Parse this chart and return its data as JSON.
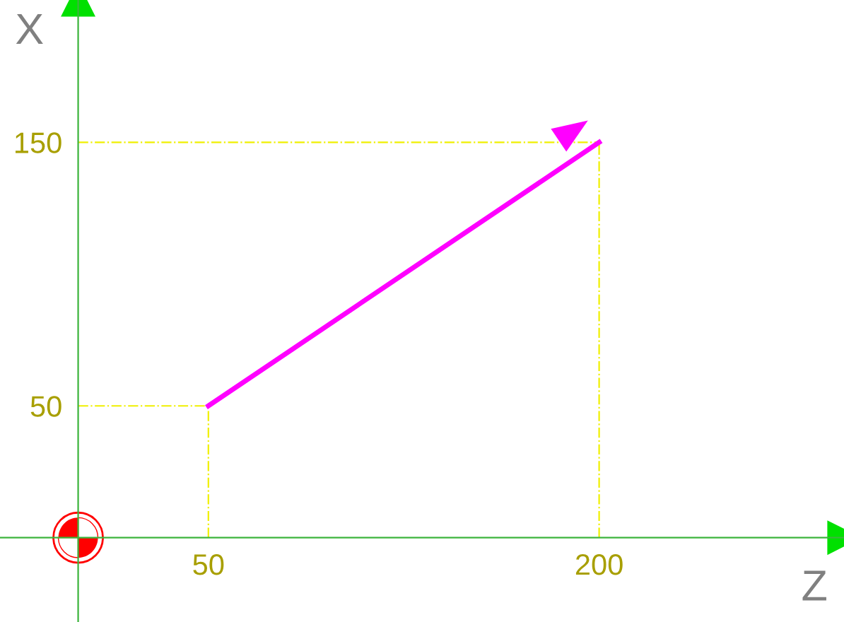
{
  "chart_data": {
    "type": "line",
    "xlabel": "Z",
    "ylabel": "X",
    "x": [
      50,
      200
    ],
    "series": [
      {
        "color": "#ff00ff",
        "values": [
          50,
          150
        ]
      }
    ],
    "xlim": [
      -30,
      294
    ],
    "ylim": [
      -32,
      204
    ],
    "xticks": [
      50,
      200
    ],
    "yticks": [
      50,
      150
    ],
    "ref_lines": [
      {
        "axis": "x",
        "value": 50,
        "color": "#f0f000",
        "line_style": "dashed"
      },
      {
        "axis": "x",
        "value": 200,
        "color": "#f0f000",
        "line_style": "dashed"
      },
      {
        "axis": "y",
        "value": 50,
        "color": "#f0f000",
        "line_style": "dashed"
      },
      {
        "axis": "y",
        "value": 150,
        "color": "#f0f000",
        "line_style": "dashed"
      }
    ],
    "grid": false,
    "marker": "none",
    "line_style": "solid"
  }
}
